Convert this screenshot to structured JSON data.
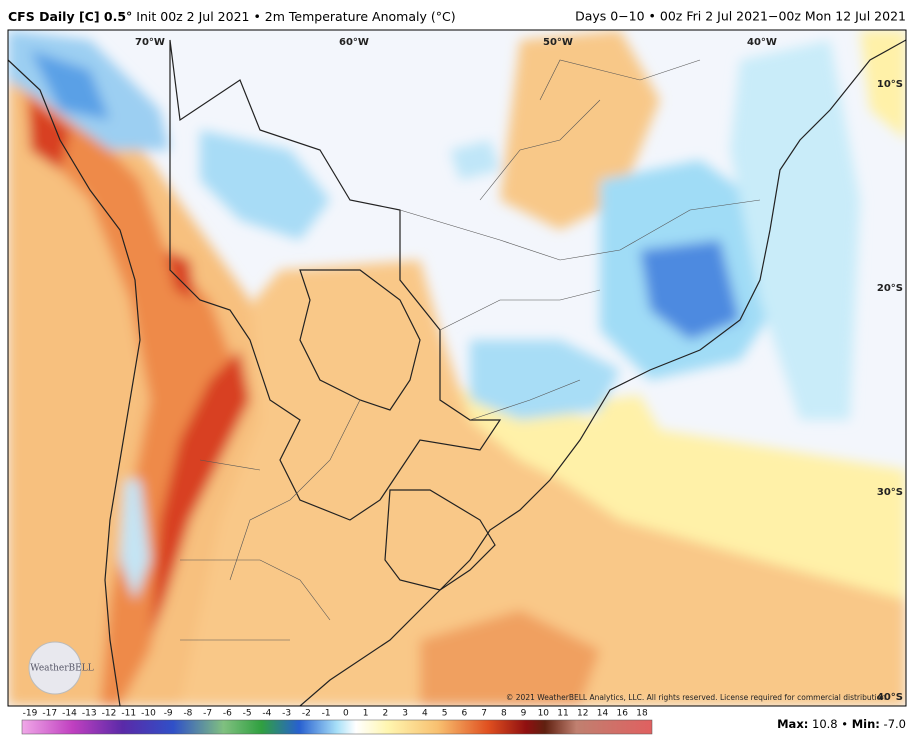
{
  "header": {
    "title": "CFS Daily [C] 0.5°",
    "subtitle": "Init 00z 2 Jul 2021 • 2m Temperature Anomaly (°C)",
    "period": "Days 0−10 • 00z Fri 2 Jul 2021−00z Mon 12 Jul 2021"
  },
  "map": {
    "longitudes": [
      "70°W",
      "60°W",
      "50°W",
      "40°W"
    ],
    "latitudes": [
      "10°S",
      "20°S",
      "30°S",
      "40°S"
    ],
    "copyright": "© 2021 WeatherBELL Analytics, LLC. All rights reserved. License required for commercial distribution",
    "logo": "WeatherBELL"
  },
  "colorbar": {
    "labels": [
      "-19",
      "-17",
      "-14",
      "-13",
      "-12",
      "-11",
      "-10",
      "-9",
      "-8",
      "-7",
      "-6",
      "-5",
      "-4",
      "-3",
      "-2",
      "-1",
      "0",
      "1",
      "2",
      "3",
      "4",
      "5",
      "6",
      "7",
      "8",
      "9",
      "10",
      "11",
      "12",
      "14",
      "16",
      "18"
    ]
  },
  "footer": {
    "max_label": "Max:",
    "max": "10.8",
    "separator": "•",
    "min_label": "Min:",
    "min": "-7.0"
  }
}
